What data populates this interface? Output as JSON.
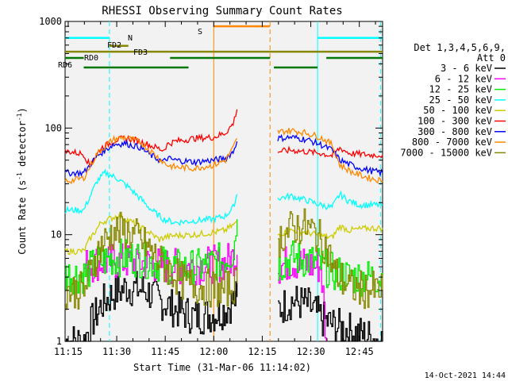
{
  "chart_data": {
    "type": "line",
    "title": "RHESSI Observing Summary Count Rates",
    "xlabel": "Start Time (31-Mar-06 11:14:02)",
    "ylabel_main": "Count Rate (s",
    "ylabel_sup1": "-1",
    "ylabel_mid": " detector",
    "ylabel_sup2": "-1",
    "ylabel_end": ")",
    "y_scale": "log",
    "ylim": [
      1,
      1000
    ],
    "xlim": [
      11.2339,
      12.87
    ],
    "x_ticks": [
      {
        "label": "11:15",
        "value": 11.25
      },
      {
        "label": "11:30",
        "value": 11.5
      },
      {
        "label": "11:45",
        "value": 11.75
      },
      {
        "label": "12:00",
        "value": 12.0
      },
      {
        "label": "12:15",
        "value": 12.25
      },
      {
        "label": "12:30",
        "value": 12.5
      },
      {
        "label": "12:45",
        "value": 12.75
      }
    ],
    "y_ticks": [
      {
        "label": "1",
        "value": 1
      },
      {
        "label": "10",
        "value": 10
      },
      {
        "label": "100",
        "value": 100
      },
      {
        "label": "1000",
        "value": 1000
      }
    ],
    "legend_header": [
      "Det 1,3,4,5,6,9,",
      "Att 0"
    ],
    "data_gap": [
      12.125,
      12.33
    ],
    "series": [
      {
        "name": "3 - 6 keV",
        "color": "#000000",
        "segments": [
          [
            [
              11.2339,
              1
            ],
            [
              11.33,
              1
            ],
            [
              11.36,
              1.4
            ],
            [
              11.42,
              2.2
            ],
            [
              11.48,
              2.8
            ],
            [
              11.55,
              3.2
            ],
            [
              11.65,
              3.0
            ],
            [
              11.72,
              2.4
            ],
            [
              11.8,
              2.0
            ],
            [
              11.9,
              1.7
            ],
            [
              12.0,
              1.8
            ],
            [
              12.06,
              2.0
            ],
            [
              12.12,
              2.6
            ]
          ],
          [
            [
              12.33,
              2.0
            ],
            [
              12.4,
              2.4
            ],
            [
              12.48,
              2.2
            ],
            [
              12.56,
              1.6
            ],
            [
              12.62,
              1.4
            ],
            [
              12.87,
              1.0
            ]
          ]
        ]
      },
      {
        "name": "6 - 12 keV",
        "color": "#ff00ff",
        "segments": [
          [
            [
              11.33,
              5.0
            ],
            [
              11.4,
              5.5
            ],
            [
              11.5,
              5.6
            ],
            [
              11.6,
              5.5
            ],
            [
              11.7,
              5.2
            ],
            [
              11.8,
              5.0
            ],
            [
              11.9,
              5.1
            ],
            [
              12.0,
              5.3
            ],
            [
              12.06,
              5.5
            ],
            [
              12.12,
              6.5
            ]
          ],
          [
            [
              12.33,
              5.0
            ],
            [
              12.4,
              5.6
            ],
            [
              12.48,
              5.2
            ],
            [
              12.55,
              5.0
            ],
            [
              12.58,
              1.0
            ]
          ]
        ]
      },
      {
        "name": "12 - 25 keV",
        "color": "#00ee00",
        "segments": [
          [
            [
              11.2339,
              4.2
            ],
            [
              11.33,
              4.2
            ],
            [
              11.4,
              5.5
            ],
            [
              11.48,
              6.0
            ],
            [
              11.55,
              6.2
            ],
            [
              11.65,
              5.8
            ],
            [
              11.75,
              5.2
            ],
            [
              11.85,
              4.8
            ],
            [
              11.95,
              5.0
            ],
            [
              12.05,
              5.8
            ],
            [
              12.1,
              7.0
            ],
            [
              12.12,
              14.0
            ]
          ],
          [
            [
              12.33,
              5.2
            ],
            [
              12.4,
              6.0
            ],
            [
              12.48,
              5.8
            ],
            [
              12.55,
              5.2
            ],
            [
              12.62,
              4.4
            ],
            [
              12.7,
              4.0
            ],
            [
              12.8,
              4.0
            ],
            [
              12.87,
              4.0
            ]
          ]
        ]
      },
      {
        "name": "25 - 50 keV",
        "color": "#00ffff",
        "segments": [
          [
            [
              11.2339,
              17
            ],
            [
              11.33,
              17
            ],
            [
              11.4,
              32
            ],
            [
              11.44,
              38
            ],
            [
              11.5,
              34
            ],
            [
              11.56,
              28
            ],
            [
              11.62,
              22
            ],
            [
              11.68,
              17
            ],
            [
              11.74,
              14
            ],
            [
              11.8,
              13
            ],
            [
              11.9,
              13.5
            ],
            [
              12.0,
              14
            ],
            [
              12.06,
              15
            ],
            [
              12.1,
              18
            ],
            [
              12.12,
              24
            ]
          ],
          [
            [
              12.33,
              22
            ],
            [
              12.4,
              23
            ],
            [
              12.48,
              21
            ],
            [
              12.55,
              19
            ],
            [
              12.61,
              18
            ],
            [
              12.65,
              24
            ],
            [
              12.69,
              21
            ],
            [
              12.75,
              19
            ],
            [
              12.87,
              19
            ]
          ]
        ]
      },
      {
        "name": "50 - 100 keV",
        "color": "#cccc00",
        "segments": [
          [
            [
              11.2339,
              7
            ],
            [
              11.33,
              7
            ],
            [
              11.36,
              9
            ],
            [
              11.42,
              13
            ],
            [
              11.5,
              15
            ],
            [
              11.55,
              14
            ],
            [
              11.65,
              11
            ],
            [
              11.72,
              9
            ],
            [
              11.75,
              9.5
            ],
            [
              11.8,
              9.8
            ],
            [
              11.9,
              10
            ],
            [
              12.0,
              10.5
            ],
            [
              12.06,
              11
            ],
            [
              12.12,
              13
            ]
          ],
          [
            [
              12.33,
              10
            ],
            [
              12.4,
              11
            ],
            [
              12.48,
              10.5
            ],
            [
              12.55,
              9.8
            ],
            [
              12.61,
              9.4
            ],
            [
              12.65,
              12
            ],
            [
              12.7,
              11
            ],
            [
              12.8,
              11.5
            ],
            [
              12.87,
              11.5
            ]
          ]
        ]
      },
      {
        "name": "100 - 300 keV",
        "color": "#ff0000",
        "segments": [
          [
            [
              11.2339,
              60
            ],
            [
              11.26,
              60
            ],
            [
              11.33,
              57
            ],
            [
              11.36,
              45
            ],
            [
              11.42,
              65
            ],
            [
              11.5,
              78
            ],
            [
              11.56,
              80
            ],
            [
              11.62,
              75
            ],
            [
              11.68,
              68
            ],
            [
              11.74,
              62
            ],
            [
              11.76,
              70
            ],
            [
              11.8,
              75
            ],
            [
              11.9,
              80
            ],
            [
              12.0,
              82
            ],
            [
              12.06,
              90
            ],
            [
              12.1,
              110
            ],
            [
              12.12,
              150
            ]
          ],
          [
            [
              12.33,
              60
            ],
            [
              12.4,
              62
            ],
            [
              12.48,
              60
            ],
            [
              12.55,
              58
            ],
            [
              12.61,
              55
            ],
            [
              12.65,
              65
            ],
            [
              12.7,
              58
            ],
            [
              12.8,
              56
            ],
            [
              12.87,
              56
            ]
          ]
        ]
      },
      {
        "name": "300 - 800 keV",
        "color": "#0000ff",
        "segments": [
          [
            [
              11.2339,
              38
            ],
            [
              11.26,
              38
            ],
            [
              11.33,
              38
            ],
            [
              11.4,
              55
            ],
            [
              11.48,
              70
            ],
            [
              11.54,
              72
            ],
            [
              11.62,
              66
            ],
            [
              11.68,
              55
            ],
            [
              11.74,
              48
            ],
            [
              11.76,
              52
            ],
            [
              11.8,
              50
            ],
            [
              11.9,
              48
            ],
            [
              12.0,
              50
            ],
            [
              12.06,
              52
            ],
            [
              12.1,
              60
            ],
            [
              12.12,
              75
            ]
          ],
          [
            [
              12.33,
              80
            ],
            [
              12.4,
              82
            ],
            [
              12.48,
              78
            ],
            [
              12.55,
              70
            ],
            [
              12.61,
              62
            ],
            [
              12.65,
              50
            ],
            [
              12.72,
              44
            ],
            [
              12.8,
              40
            ],
            [
              12.87,
              38
            ]
          ]
        ]
      },
      {
        "name": "800 - 7000 keV",
        "color": "#ff8800",
        "segments": [
          [
            [
              11.2339,
              32
            ],
            [
              11.26,
              32
            ],
            [
              11.33,
              34
            ],
            [
              11.4,
              58
            ],
            [
              11.48,
              78
            ],
            [
              11.54,
              82
            ],
            [
              11.62,
              74
            ],
            [
              11.68,
              60
            ],
            [
              11.74,
              48
            ],
            [
              11.76,
              45
            ],
            [
              11.8,
              43
            ],
            [
              11.9,
              42
            ],
            [
              12.0,
              45
            ],
            [
              12.06,
              50
            ],
            [
              12.1,
              65
            ],
            [
              12.12,
              80
            ]
          ],
          [
            [
              12.33,
              92
            ],
            [
              12.4,
              95
            ],
            [
              12.48,
              90
            ],
            [
              12.55,
              82
            ],
            [
              12.61,
              70
            ],
            [
              12.65,
              45
            ],
            [
              12.72,
              38
            ],
            [
              12.8,
              34
            ],
            [
              12.87,
              32
            ]
          ]
        ]
      },
      {
        "name": "7000 - 15000 keV",
        "color": "#888800",
        "segments": [
          [
            [
              11.2339,
              3.0
            ],
            [
              11.33,
              3.0
            ],
            [
              11.38,
              5.5
            ],
            [
              11.42,
              8
            ],
            [
              11.48,
              10.5
            ],
            [
              11.53,
              11
            ],
            [
              11.6,
              9.5
            ],
            [
              11.66,
              7.5
            ],
            [
              11.72,
              5.5
            ],
            [
              11.78,
              4.5
            ],
            [
              11.85,
              3.5
            ],
            [
              11.95,
              3.2
            ],
            [
              12.05,
              3.0
            ],
            [
              12.12,
              3.5
            ]
          ],
          [
            [
              12.33,
              9.0
            ],
            [
              12.4,
              11.5
            ],
            [
              12.46,
              12
            ],
            [
              12.52,
              10.5
            ],
            [
              12.58,
              7.5
            ],
            [
              12.62,
              4.5
            ],
            [
              12.7,
              3.2
            ],
            [
              12.8,
              3.0
            ],
            [
              12.87,
              3.0
            ]
          ]
        ]
      }
    ],
    "flag_lines": [
      {
        "label": "N",
        "color": "#00ffff",
        "value": 700,
        "segments": [
          [
            11.2339,
            11.4625
          ],
          [
            12.535,
            12.87
          ]
        ]
      },
      {
        "label": "S",
        "color": "#ff8800",
        "value": 900,
        "segments": [
          [
            12.0,
            12.29
          ]
        ]
      },
      {
        "label": "FD2",
        "color": "#888800",
        "value": 590,
        "segments": [
          [
            11.4625,
            11.56
          ]
        ]
      },
      {
        "label": "FD3",
        "color": "#888800",
        "value": 520,
        "segments": [
          [
            11.2339,
            12.87
          ]
        ]
      },
      {
        "label": "RD0",
        "color": "#007700",
        "value": 455,
        "segments": [
          [
            11.2339,
            11.33
          ],
          [
            11.775,
            12.29
          ],
          [
            12.58,
            12.87
          ]
        ]
      },
      {
        "label": "RD6",
        "color": "#007700",
        "value": 370,
        "segments": [
          [
            11.33,
            11.87
          ],
          [
            12.31,
            12.535
          ]
        ]
      }
    ],
    "vertical_lines": [
      {
        "value": 11.4625,
        "color": "#00ffff",
        "style": "dashed"
      },
      {
        "value": 12.0,
        "color": "#ff8800",
        "style": "solid"
      },
      {
        "value": 12.29,
        "color": "#ff8800",
        "style": "dashed"
      },
      {
        "value": 12.535,
        "color": "#00ffff",
        "style": "solid"
      },
      {
        "value": 12.8605,
        "color": "#00ffff",
        "style": "dashed"
      }
    ]
  },
  "footer": {
    "timestamp": "14-Oct-2021 14:44"
  }
}
